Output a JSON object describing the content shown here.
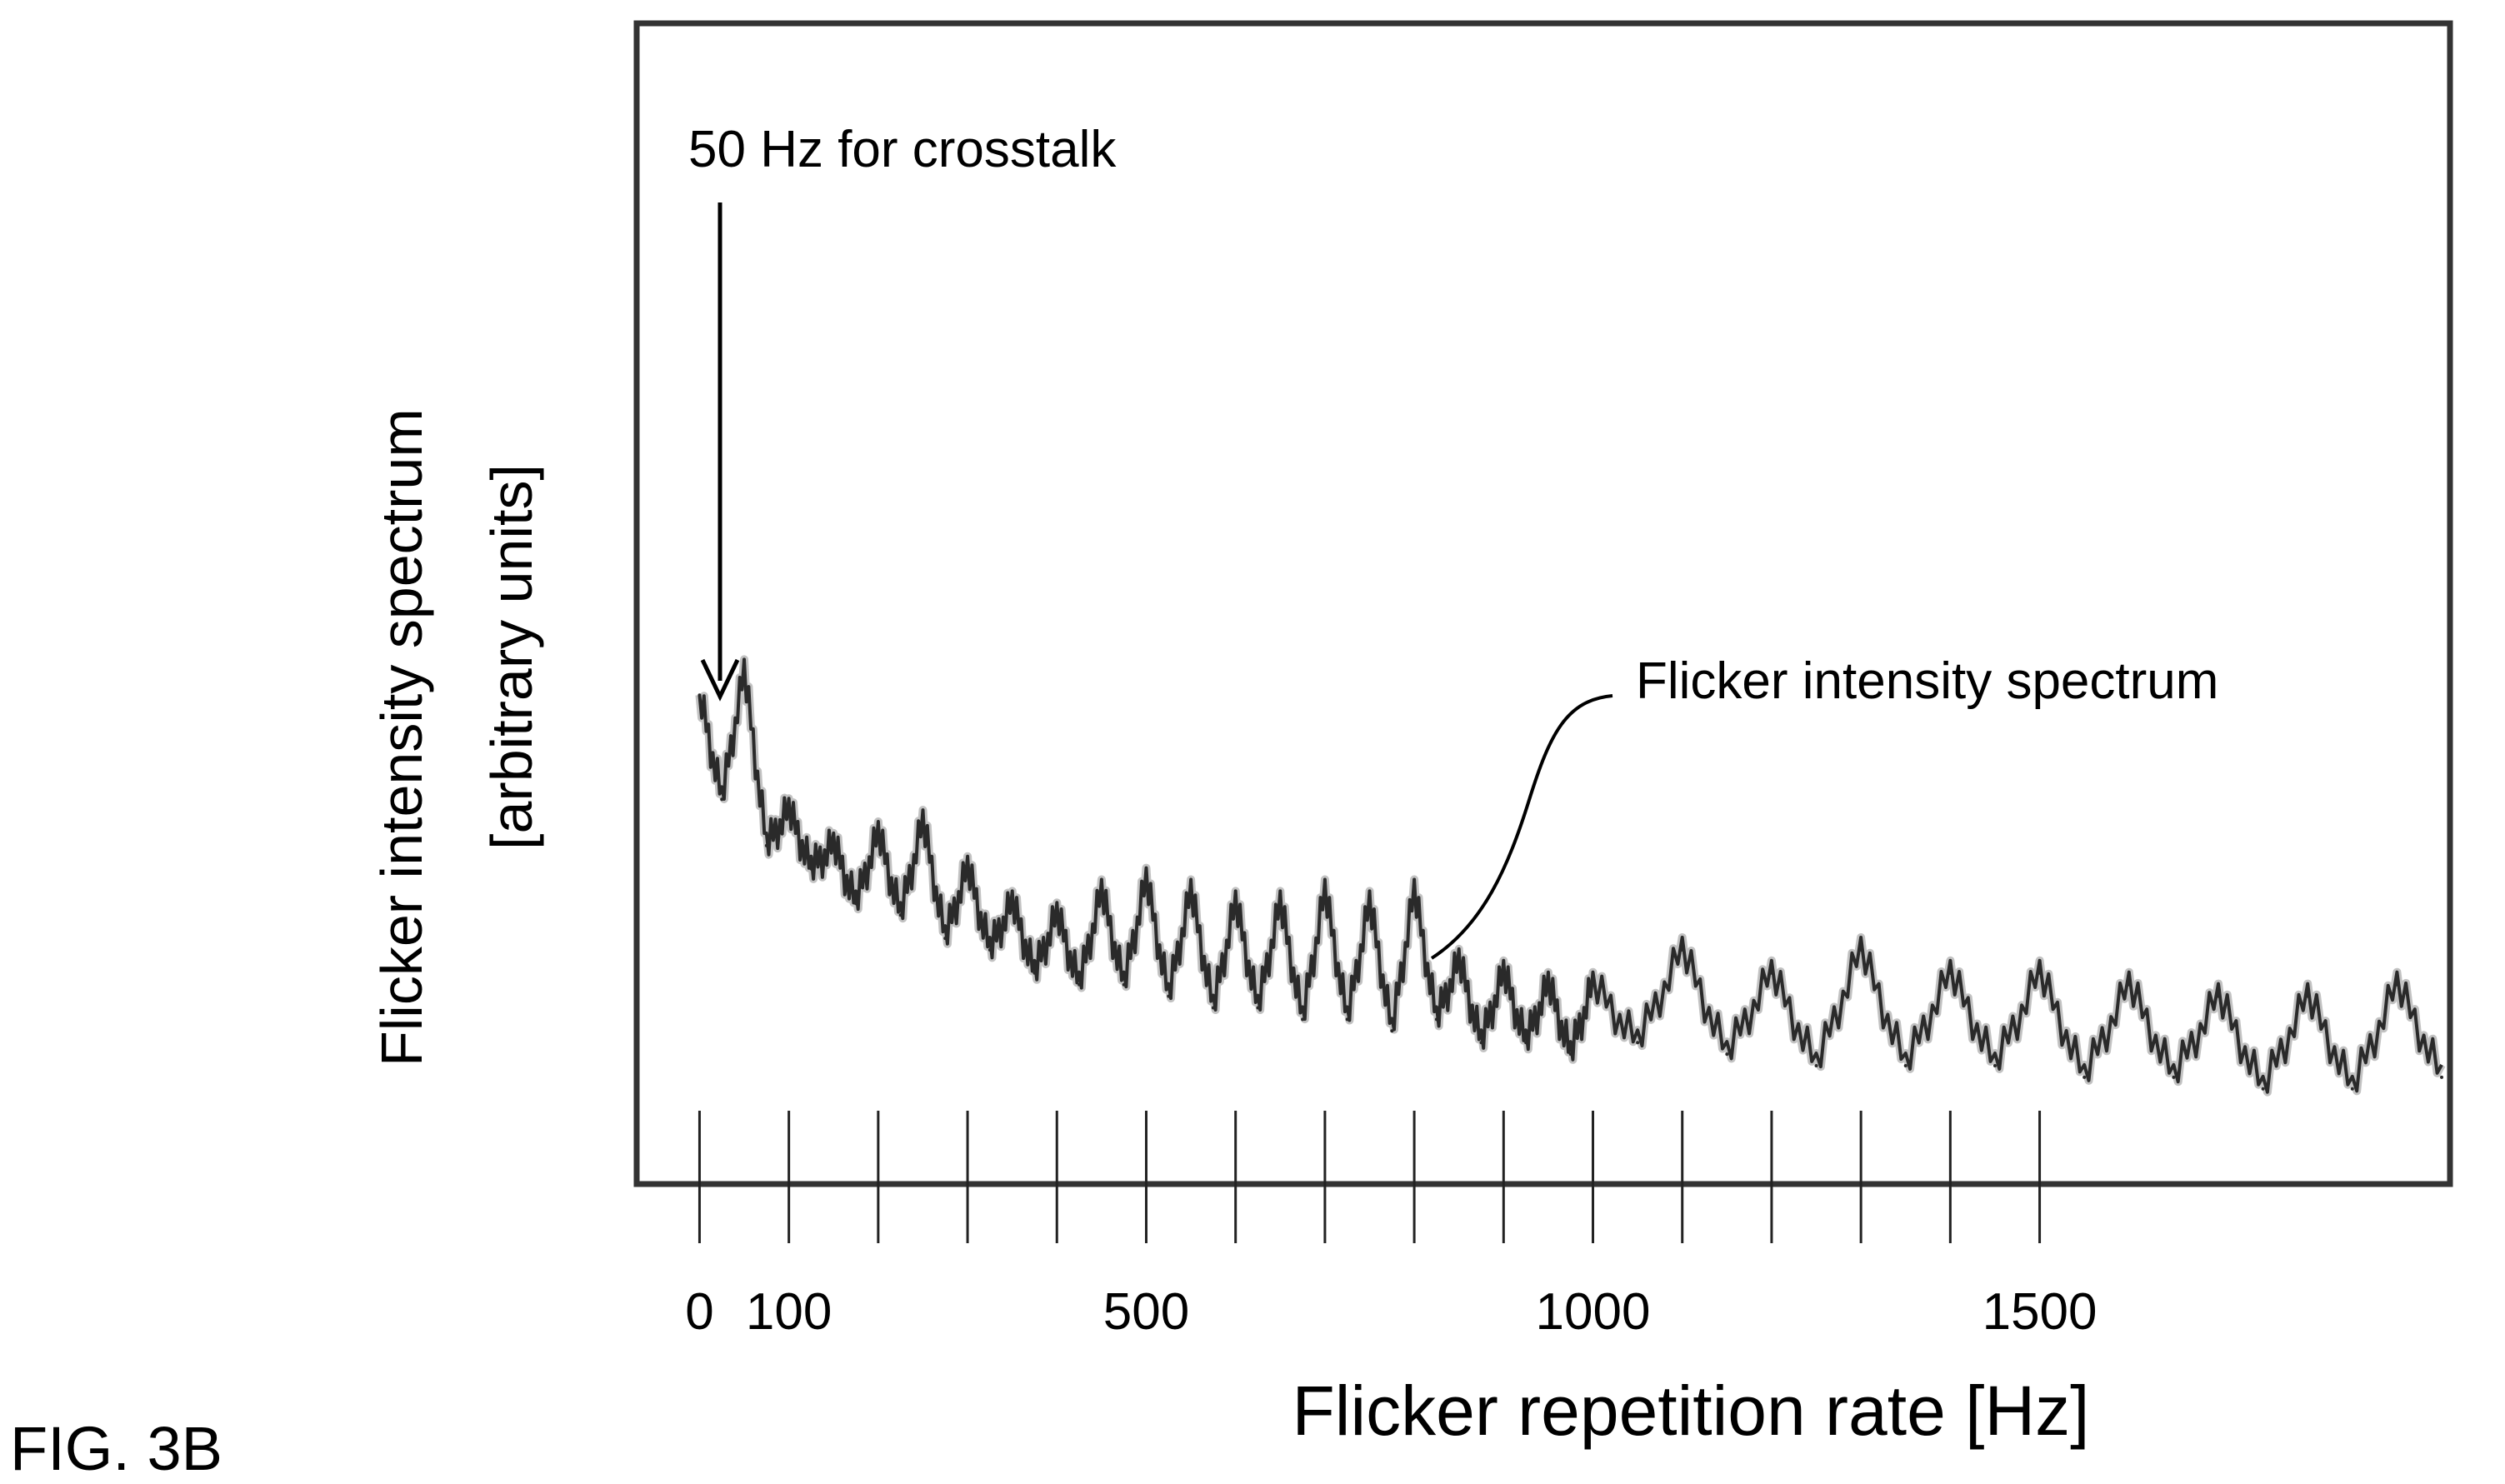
{
  "figure_label": "FIG. 3B",
  "chart_data": {
    "type": "line",
    "title": "",
    "xlabel": "Flicker repetition rate [Hz]",
    "ylabel_line1": "Flicker intensity spectrum",
    "ylabel_line2": "[arbitrary units]",
    "xlim": [
      -20,
      1950
    ],
    "ylim": [
      0,
      1
    ],
    "grid": false,
    "x_ticks_labeled": [
      "0",
      "100",
      "500",
      "1000",
      "1500"
    ],
    "x_tick_positions": [
      0,
      100,
      200,
      300,
      400,
      500,
      600,
      700,
      800,
      900,
      1000,
      1100,
      1200,
      1300,
      1400,
      1500
    ],
    "series": [
      {
        "name": "Flicker intensity spectrum",
        "x": [
          0,
          25,
          50,
          75,
          100,
          125,
          150,
          175,
          200,
          225,
          250,
          275,
          300,
          325,
          350,
          375,
          400,
          425,
          450,
          475,
          500,
          525,
          550,
          575,
          600,
          625,
          650,
          675,
          700,
          725,
          750,
          775,
          800,
          825,
          850,
          875,
          900,
          925,
          950,
          975,
          1000,
          1050,
          1100,
          1150,
          1200,
          1250,
          1300,
          1350,
          1400,
          1450,
          1500,
          1550,
          1600,
          1650,
          1700,
          1750,
          1800,
          1850,
          1900,
          1950
        ],
        "values": [
          0.42,
          0.33,
          0.44,
          0.29,
          0.32,
          0.27,
          0.29,
          0.24,
          0.3,
          0.23,
          0.31,
          0.21,
          0.27,
          0.2,
          0.24,
          0.18,
          0.23,
          0.17,
          0.25,
          0.17,
          0.26,
          0.16,
          0.25,
          0.15,
          0.24,
          0.15,
          0.24,
          0.14,
          0.25,
          0.14,
          0.24,
          0.13,
          0.25,
          0.14,
          0.19,
          0.12,
          0.18,
          0.12,
          0.17,
          0.11,
          0.17,
          0.12,
          0.2,
          0.11,
          0.18,
          0.1,
          0.2,
          0.1,
          0.18,
          0.1,
          0.18,
          0.09,
          0.17,
          0.09,
          0.16,
          0.08,
          0.16,
          0.08,
          0.17,
          0.09
        ]
      }
    ],
    "annotations": [
      {
        "text": "50 Hz for crosstalk",
        "x": 50,
        "y": 0.44,
        "kind": "arrow"
      },
      {
        "text": "Flicker intensity spectrum",
        "x": 825,
        "y": 0.2,
        "kind": "leader-line"
      }
    ]
  }
}
